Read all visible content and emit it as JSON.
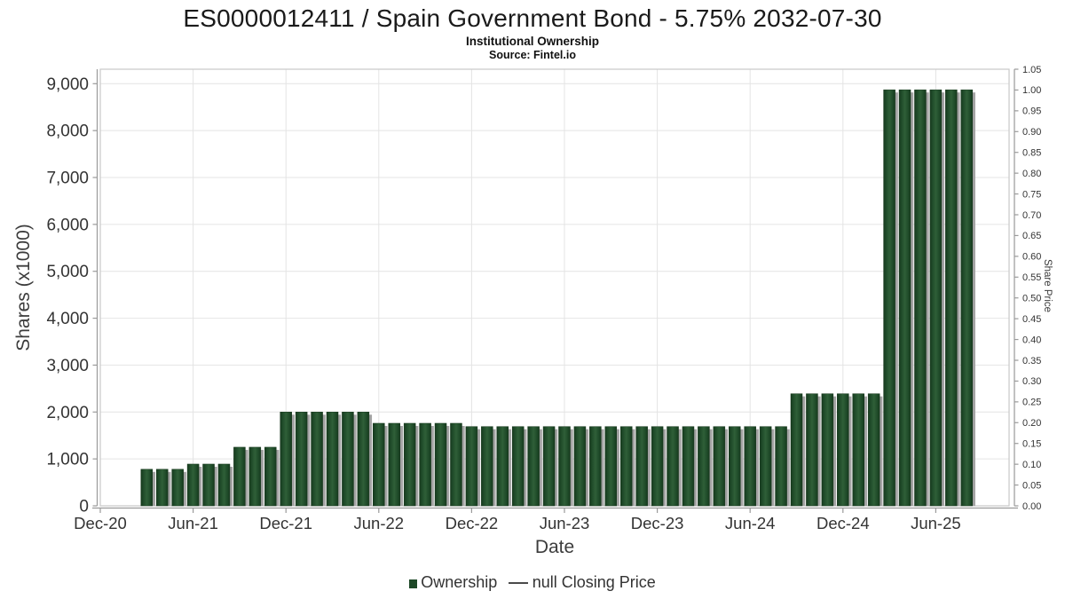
{
  "header": {
    "title": "ES0000012411 / Spain Government Bond - 5.75% 2032-07-30",
    "subtitle": "Institutional Ownership",
    "source": "Source: Fintel.io"
  },
  "chart_data": {
    "type": "bar",
    "title": "ES0000012411 / Spain Government Bond - 5.75% 2032-07-30",
    "subtitle": "Institutional Ownership",
    "source": "Source: Fintel.io",
    "xlabel": "Date",
    "ylabel_left": "Shares (x1000)",
    "ylabel_right": "Share Price",
    "grid": true,
    "legend_position": "bottom-center",
    "ylim_left": [
      0,
      9310
    ],
    "ylim_right": [
      0,
      1.05
    ],
    "y_ticks_left": [
      "0",
      "1,000",
      "2,000",
      "3,000",
      "4,000",
      "5,000",
      "6,000",
      "7,000",
      "8,000",
      "9,000"
    ],
    "y_ticks_right": [
      "0.00",
      "0.05",
      "0.10",
      "0.15",
      "0.20",
      "0.25",
      "0.30",
      "0.35",
      "0.40",
      "0.45",
      "0.50",
      "0.55",
      "0.60",
      "0.65",
      "0.70",
      "0.75",
      "0.80",
      "0.85",
      "0.90",
      "0.95",
      "1.00",
      "1.05"
    ],
    "x_ticks": [
      "Dec-20",
      "Jun-21",
      "Dec-21",
      "Jun-22",
      "Dec-22",
      "Jun-23",
      "Dec-23",
      "Jun-24",
      "Dec-24",
      "Jun-25"
    ],
    "categories": [
      "Mar-21",
      "Apr-21",
      "May-21",
      "Jun-21",
      "Jul-21",
      "Aug-21",
      "Sep-21",
      "Oct-21",
      "Nov-21",
      "Dec-21",
      "Jan-22",
      "Feb-22",
      "Mar-22",
      "Apr-22",
      "May-22",
      "Jun-22",
      "Jul-22",
      "Aug-22",
      "Sep-22",
      "Oct-22",
      "Nov-22",
      "Dec-22",
      "Jan-23",
      "Feb-23",
      "Mar-23",
      "Apr-23",
      "May-23",
      "Jun-23",
      "Jul-23",
      "Aug-23",
      "Sep-23",
      "Oct-23",
      "Nov-23",
      "Dec-23",
      "Jan-24",
      "Feb-24",
      "Mar-24",
      "Apr-24",
      "May-24",
      "Jun-24",
      "Jul-24",
      "Aug-24",
      "Sep-24",
      "Oct-24",
      "Nov-24",
      "Dec-24",
      "Jan-25",
      "Feb-25",
      "Mar-25",
      "Apr-25",
      "May-25",
      "Jun-25",
      "Jul-25",
      "Aug-25"
    ],
    "series": [
      {
        "name": "Ownership",
        "type": "bar",
        "values": [
          780,
          780,
          780,
          890,
          890,
          890,
          1250,
          1250,
          1250,
          2000,
          2000,
          2000,
          2000,
          2000,
          2000,
          1760,
          1760,
          1760,
          1760,
          1760,
          1760,
          1690,
          1690,
          1690,
          1690,
          1690,
          1690,
          1690,
          1690,
          1690,
          1690,
          1690,
          1690,
          1690,
          1690,
          1690,
          1690,
          1690,
          1690,
          1690,
          1690,
          1690,
          2390,
          2390,
          2390,
          2390,
          2390,
          2390,
          8870,
          8870,
          8870,
          8870,
          8870,
          8870
        ]
      },
      {
        "name": "null Closing Price",
        "type": "line",
        "values": []
      }
    ],
    "colors": {
      "bar": "#1d4827",
      "bar_edge_dark": "#17381d",
      "bar_mid_light": "#2f5f38",
      "bar_shadow": "#a3a3a3",
      "gridline": "#e4e4e4",
      "plot_border": "#c9c9c9",
      "spine": "#9a9a9a",
      "tick_text": "#333333"
    }
  },
  "legend": {
    "items": [
      {
        "label": "Ownership",
        "marker": "square",
        "color": "#1d4827"
      },
      {
        "label": "null Closing Price",
        "marker": "line",
        "color": "#4a4a4a"
      }
    ]
  }
}
